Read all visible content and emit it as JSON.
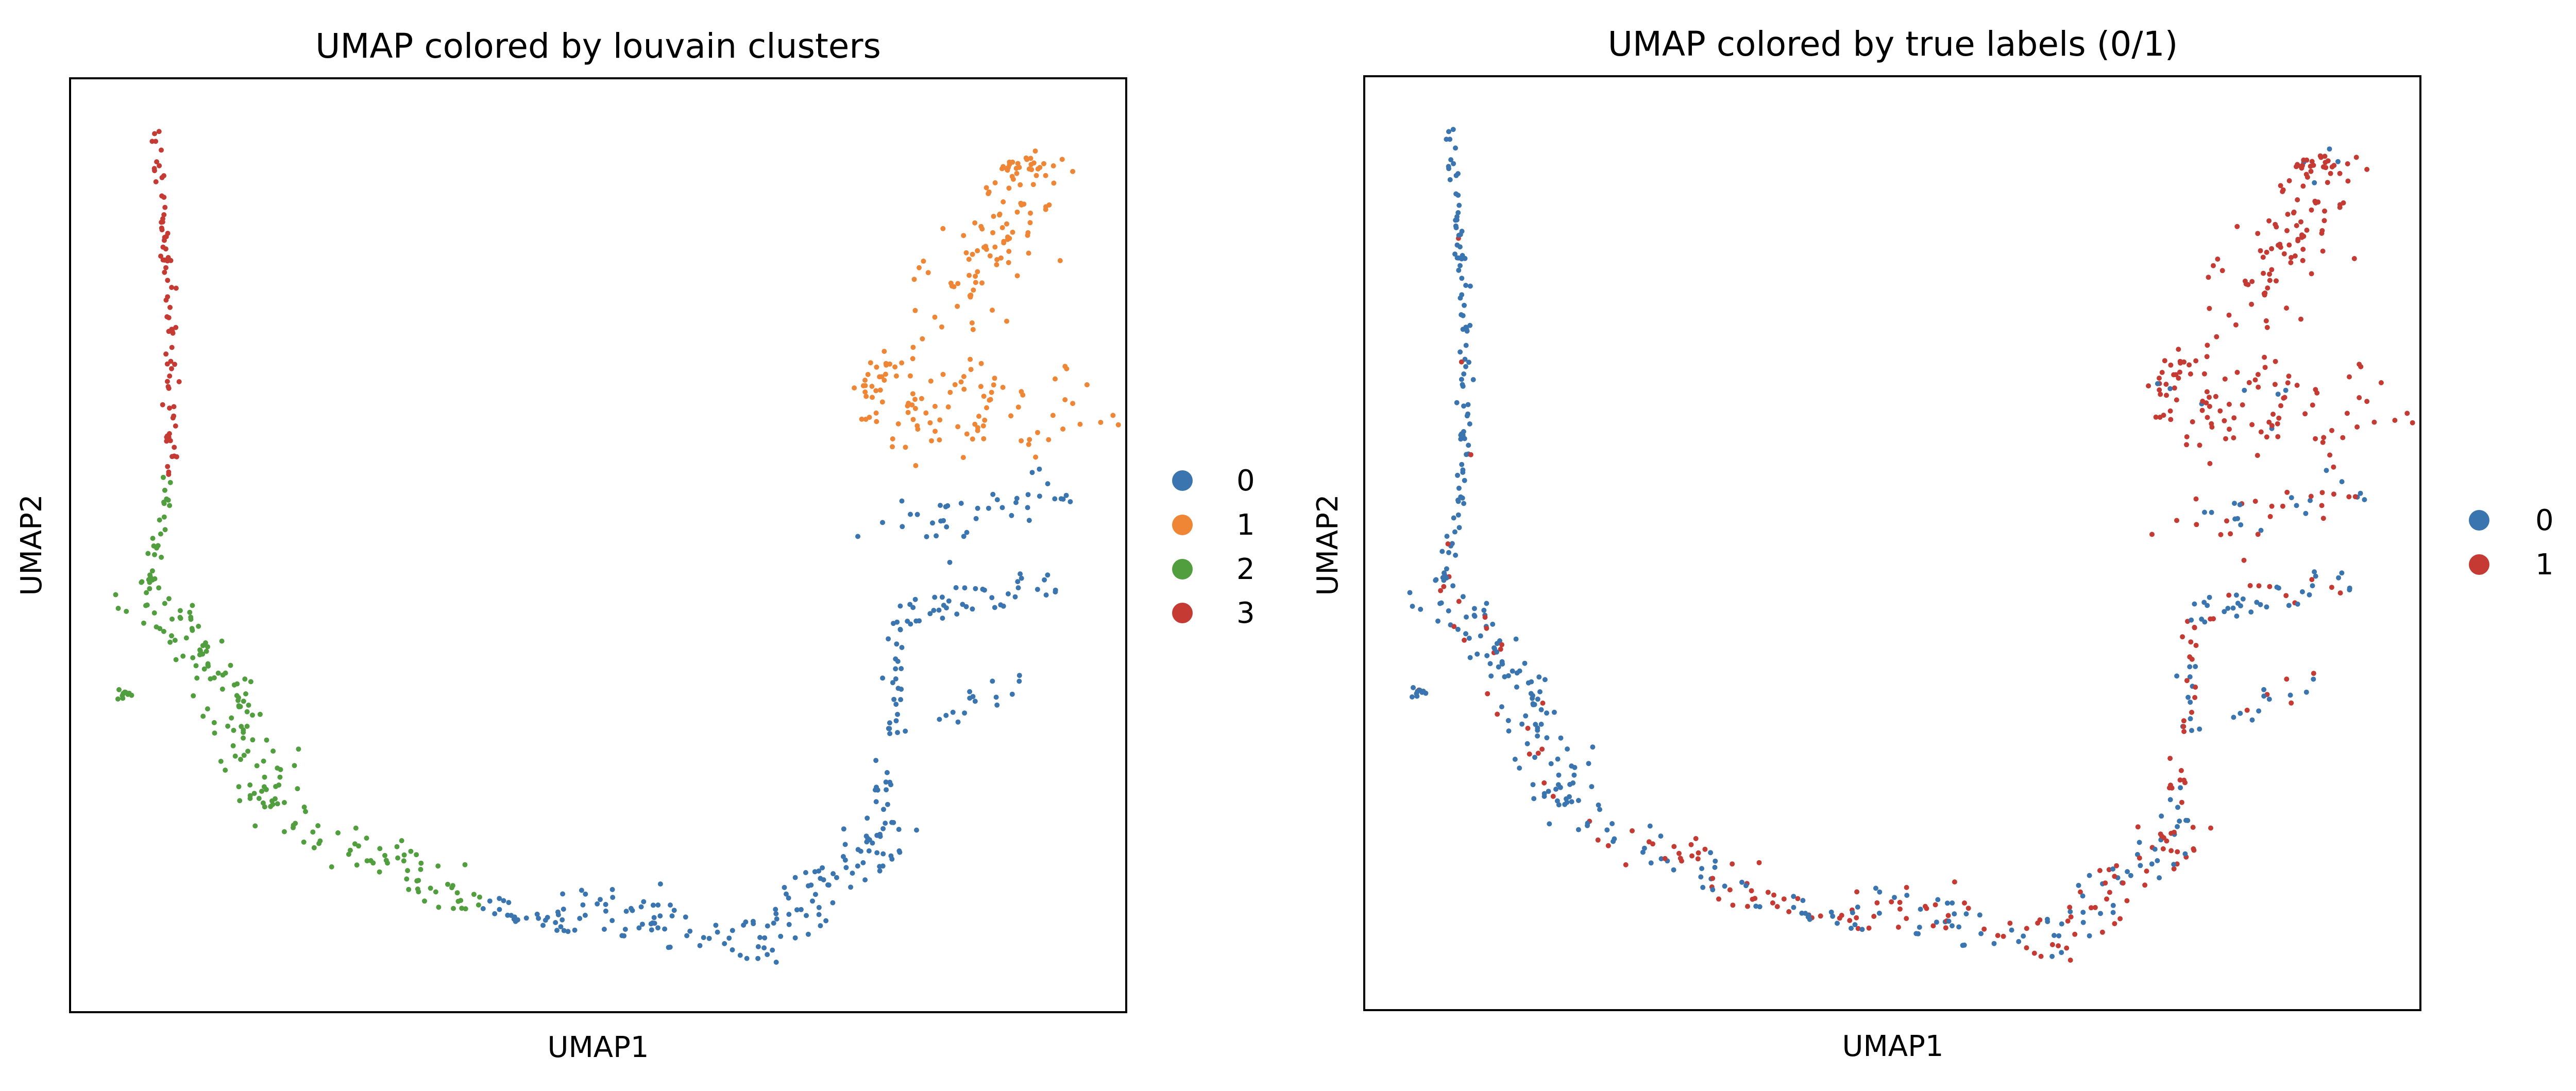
{
  "chart_data": [
    {
      "type": "scatter",
      "title": "UMAP colored by louvain clusters",
      "xlabel": "UMAP1",
      "ylabel": "UMAP2",
      "grid": false,
      "ticks": "none",
      "legend_position": "right",
      "legend": [
        {
          "label": "0",
          "color": "#3b75af"
        },
        {
          "label": "1",
          "color": "#ef8636"
        },
        {
          "label": "2",
          "color": "#519e3e"
        },
        {
          "label": "3",
          "color": "#c53a32"
        }
      ],
      "xlim": [
        0,
        10
      ],
      "ylim": [
        0,
        10
      ]
    },
    {
      "type": "scatter",
      "title": "UMAP colored by true labels (0/1)",
      "xlabel": "UMAP1",
      "ylabel": "UMAP2",
      "grid": false,
      "ticks": "none",
      "legend_position": "right",
      "legend": [
        {
          "label": "0",
          "color": "#3b75af"
        },
        {
          "label": "1",
          "color": "#c53a32"
        }
      ],
      "xlim": [
        0,
        10
      ],
      "ylim": [
        0,
        10
      ]
    }
  ]
}
